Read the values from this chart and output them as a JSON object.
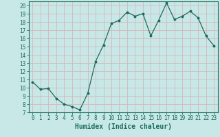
{
  "x": [
    0,
    1,
    2,
    3,
    4,
    5,
    6,
    7,
    8,
    9,
    10,
    11,
    12,
    13,
    14,
    15,
    16,
    17,
    18,
    19,
    20,
    21,
    22,
    23
  ],
  "y": [
    10.7,
    9.8,
    9.9,
    8.7,
    8.0,
    7.7,
    7.3,
    9.3,
    13.2,
    15.2,
    17.8,
    18.2,
    19.2,
    18.7,
    19.0,
    16.3,
    18.2,
    20.3,
    18.3,
    18.7,
    19.3,
    18.5,
    16.3,
    15.1
  ],
  "line_color": "#1a6b5a",
  "marker": "o",
  "marker_size": 1.8,
  "linewidth": 0.9,
  "bg_color": "#c8e8e8",
  "grid_color": "#d4b8b8",
  "xlabel": "Humidex (Indice chaleur)",
  "xlim": [
    -0.5,
    23.5
  ],
  "ylim": [
    7,
    20.5
  ],
  "yticks": [
    7,
    8,
    9,
    10,
    11,
    12,
    13,
    14,
    15,
    16,
    17,
    18,
    19,
    20
  ],
  "xticks": [
    0,
    1,
    2,
    3,
    4,
    5,
    6,
    7,
    8,
    9,
    10,
    11,
    12,
    13,
    14,
    15,
    16,
    17,
    18,
    19,
    20,
    21,
    22,
    23
  ],
  "tick_color": "#1a6b5a",
  "label_fontsize": 5.5,
  "xlabel_fontsize": 7.0
}
